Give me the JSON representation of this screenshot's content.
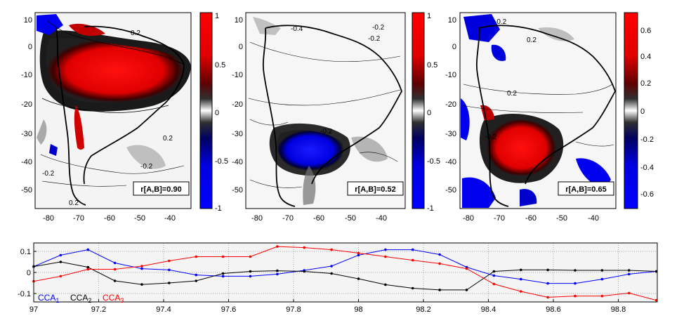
{
  "chart_data": [
    {
      "type": "heatmap",
      "panel": "map-1",
      "x_ticks": [
        "-80",
        "-70",
        "-60",
        "-50",
        "-40"
      ],
      "y_ticks": [
        "10",
        "0",
        "-10",
        "-20",
        "-30",
        "-40",
        "-50"
      ],
      "colorbar_ticks": [
        "1",
        "0.5",
        "0",
        "-0.5",
        "-1"
      ],
      "colorbar_range": [
        -1,
        1
      ],
      "correlation_label": "r[A,B]=0.90",
      "contour_labels": [
        "0.2",
        "-0.2",
        "0.2",
        "-0.2",
        "0.2"
      ]
    },
    {
      "type": "heatmap",
      "panel": "map-2",
      "x_ticks": [
        "-80",
        "-70",
        "-60",
        "-50",
        "-40"
      ],
      "y_ticks": [
        "10",
        "0",
        "-10",
        "-20",
        "-30",
        "-40",
        "-50"
      ],
      "colorbar_ticks": [
        "1",
        "0.5",
        "0",
        "-0.5",
        "-1"
      ],
      "colorbar_range": [
        -1,
        1
      ],
      "correlation_label": "r[A,B]=0.52",
      "contour_labels": [
        "-0.4",
        "-0.2",
        "-0.2",
        "-0.2"
      ]
    },
    {
      "type": "heatmap",
      "panel": "map-3",
      "x_ticks": [
        "-80",
        "-70",
        "-60",
        "-50",
        "-40"
      ],
      "y_ticks": [
        "10",
        "0",
        "-10",
        "-20",
        "-30",
        "-40",
        "-50"
      ],
      "colorbar_ticks": [
        "0.6",
        "0.4",
        "0.2",
        "0",
        "-0.2",
        "-0.4",
        "-0.6"
      ],
      "colorbar_range": [
        -0.7,
        0.7
      ],
      "correlation_label": "r[A,B]=0.65",
      "contour_labels": [
        "-0.2",
        "0.2",
        "-0.2",
        "0.2"
      ]
    },
    {
      "type": "line",
      "panel": "timeseries",
      "x_ticks": [
        "97",
        "97.2",
        "97.4",
        "97.6",
        "97.8",
        "98",
        "98.2",
        "98.4",
        "98.6",
        "98.8"
      ],
      "y_ticks": [
        "0.1",
        "0",
        "-0.1"
      ],
      "xlim": [
        97,
        98.92
      ],
      "ylim": [
        -0.14,
        0.14
      ],
      "grid": true,
      "x": [
        97.0,
        97.083,
        97.167,
        97.25,
        97.333,
        97.417,
        97.5,
        97.583,
        97.667,
        97.75,
        97.833,
        97.917,
        98.0,
        98.083,
        98.167,
        98.25,
        98.333,
        98.417,
        98.5,
        98.583,
        98.667,
        98.75,
        98.833,
        98.917
      ],
      "series": [
        {
          "color": "#0000ff",
          "values": [
            0.028,
            0.082,
            0.108,
            0.045,
            0.018,
            0.012,
            -0.012,
            -0.018,
            -0.018,
            -0.008,
            0.01,
            0.03,
            0.082,
            0.108,
            0.108,
            0.085,
            0.025,
            -0.015,
            -0.032,
            -0.052,
            -0.052,
            -0.032,
            -0.008,
            0.005
          ]
        },
        {
          "color": "#000000",
          "values": [
            0.028,
            0.05,
            0.025,
            -0.04,
            -0.057,
            -0.05,
            -0.04,
            -0.005,
            0.005,
            0.008,
            0.005,
            -0.005,
            -0.03,
            -0.058,
            -0.075,
            -0.083,
            -0.083,
            0.005,
            0.012,
            0.012,
            0.01,
            0.01,
            0.01,
            0.005
          ]
        },
        {
          "color": "#ff0000",
          "values": [
            -0.042,
            -0.018,
            0.015,
            0.015,
            0.03,
            0.055,
            0.075,
            0.075,
            0.075,
            0.123,
            0.118,
            0.108,
            0.092,
            0.075,
            0.058,
            0.042,
            0.018,
            -0.055,
            -0.09,
            -0.118,
            -0.112,
            -0.112,
            -0.098,
            -0.132
          ]
        }
      ],
      "legend": [
        {
          "base": "CCA",
          "sub": "1",
          "color": "#0000ff"
        },
        {
          "base": "CCA",
          "sub": "2",
          "color": "#000000"
        },
        {
          "base": "CCA",
          "sub": "3",
          "color": "#ff0000"
        }
      ],
      "legend_position": "bottom-left"
    }
  ]
}
